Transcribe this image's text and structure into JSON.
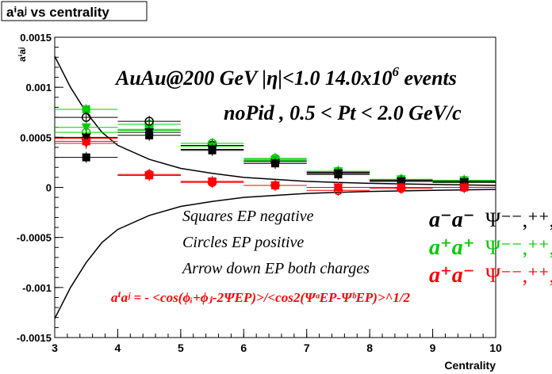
{
  "chart_data": {
    "type": "scatter",
    "title": "aⁱaʲ vs centrality",
    "xlabel": "Centrality",
    "ylabel": "aⁱaʲ",
    "xlim": [
      3,
      10
    ],
    "ylim": [
      -0.0015,
      0.0015
    ],
    "x_ticks": [
      "3",
      "4",
      "5",
      "6",
      "7",
      "8",
      "9",
      "10"
    ],
    "y_ticks": [
      "-0.0015",
      "-0.001",
      "-0.0005",
      "0",
      "0.0005",
      "0.001",
      "0.0015"
    ],
    "grid": false,
    "x": [
      3.5,
      4.5,
      5.5,
      6.5,
      7.5,
      8.5,
      9.5
    ],
    "series": [
      {
        "marker": "square",
        "color": "#00cc00",
        "values": [
          0.00078,
          0.00058,
          0.00042,
          0.00028,
          0.00015,
          7e-05,
          6e-05
        ]
      },
      {
        "marker": "square",
        "color": "#000000",
        "values": [
          0.0003,
          0.00052,
          0.00037,
          0.00024,
          0.00013,
          6e-05,
          5e-05
        ]
      },
      {
        "marker": "square",
        "color": "#ff0000",
        "values": [
          0.00046,
          0.00012,
          6e-05,
          2e-05,
          0.0,
          0.0,
          0.0
        ]
      },
      {
        "marker": "circle",
        "color": "#00cc00",
        "values": [
          0.00055,
          0.00063,
          0.00044,
          0.00029,
          0.00016,
          8e-05,
          7e-05
        ]
      },
      {
        "marker": "circle",
        "color": "#000000",
        "values": [
          0.0007,
          0.00066,
          0.00042,
          0.00026,
          0.00015,
          7e-05,
          6e-05
        ]
      },
      {
        "marker": "circle",
        "color": "#ff0000",
        "values": [
          0.00049,
          0.00013,
          5e-05,
          2e-05,
          -3e-05,
          -1e-05,
          0.0
        ]
      },
      {
        "marker": "triangle-down",
        "color": "#00cc00",
        "values": [
          0.0006,
          0.00057,
          0.00041,
          0.00027,
          0.00016,
          8e-05,
          7e-05
        ]
      },
      {
        "marker": "triangle-down",
        "color": "#000000",
        "values": [
          0.0005,
          0.00055,
          0.00038,
          0.00024,
          0.00014,
          6e-05,
          5e-05
        ]
      },
      {
        "marker": "triangle-down",
        "color": "#ff0000",
        "values": [
          0.00044,
          0.00012,
          5e-05,
          2e-05,
          0.0,
          0.0,
          0.0
        ]
      }
    ],
    "curves": [
      {
        "color": "#000000",
        "x": [
          3.0,
          3.25,
          3.5,
          3.75,
          4.0,
          4.5,
          5.0,
          5.5,
          6.0,
          6.5,
          7.0,
          7.5,
          8.0,
          9.0,
          10.0
        ],
        "values": [
          0.00131,
          0.001,
          0.00075,
          0.00055,
          0.00042,
          0.00028,
          0.00019,
          0.00014,
          0.0001,
          8e-05,
          6e-05,
          5e-05,
          4e-05,
          3e-05,
          2e-05
        ]
      },
      {
        "color": "#000000",
        "x": [
          3.0,
          3.25,
          3.5,
          3.75,
          4.0,
          4.5,
          5.0,
          5.5,
          6.0,
          6.5,
          7.0,
          7.5,
          8.0,
          9.0,
          10.0
        ],
        "values": [
          -0.00131,
          -0.001,
          -0.00075,
          -0.00055,
          -0.00042,
          -0.00028,
          -0.00019,
          -0.00014,
          -0.0001,
          -8e-05,
          -6e-05,
          -5e-05,
          -4e-05,
          -3e-05,
          -2e-05
        ]
      }
    ],
    "annotations": {
      "header1_pre": "AuAu@200 GeV |η|<1.0 14.0x10",
      "header1_sup": "6",
      "header1_post": " events",
      "header2": "noPid , 0.5 < Pt < 2.0 GeV/c",
      "note1": "Squares EP negative",
      "note2": "Circles EP positive",
      "note3": "Arrow down EP both charges",
      "formula": "aⁱaʲ = - <cos(ϕᵢ+ϕⱼ-2ΨEP)>/<cos2(ΨᵃEP-ΨᵇEP)>^1/2"
    },
    "legend": [
      {
        "label": "a⁺a⁺",
        "psi": "Ψ⁻⁻,⁺⁺,⁺-",
        "color": "#00cc00"
      },
      {
        "label": "a⁻a⁻",
        "psi": "Ψ⁻⁻,⁺⁺,⁺-",
        "color": "#000000"
      },
      {
        "label": "a⁺a⁻",
        "psi": "Ψ⁻⁻,⁺⁺,⁺-",
        "color": "#ff0000"
      }
    ]
  }
}
